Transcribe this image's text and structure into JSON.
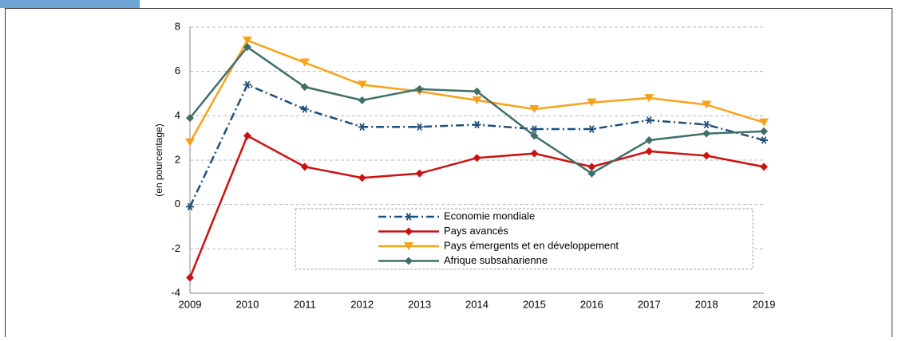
{
  "chart_data": {
    "type": "line",
    "y_label": "(en pourcentage)",
    "categories": [
      "2009",
      "2010",
      "2011",
      "2012",
      "2013",
      "2014",
      "2015",
      "2016",
      "2017",
      "2018",
      "2019"
    ],
    "series": [
      {
        "name": "Economie mondiale",
        "color": "#1f4e79",
        "marker": "star",
        "dash": "dashdot",
        "values": [
          -0.1,
          5.4,
          4.3,
          3.5,
          3.5,
          3.6,
          3.4,
          3.4,
          3.8,
          3.6,
          2.9
        ]
      },
      {
        "name": "Pays avancés",
        "color": "#cc1111",
        "marker": "diamond",
        "dash": "solid",
        "values": [
          -3.3,
          3.1,
          1.7,
          1.2,
          1.4,
          2.1,
          2.3,
          1.7,
          2.4,
          2.2,
          1.7
        ]
      },
      {
        "name": "Pays émergents et en développement",
        "color": "#f7a21b",
        "marker": "triangle-down",
        "dash": "solid",
        "values": [
          2.8,
          7.4,
          6.4,
          5.4,
          5.1,
          4.7,
          4.3,
          4.6,
          4.8,
          4.5,
          3.7
        ]
      },
      {
        "name": "Afrique subsaharienne",
        "color": "#3f7068",
        "marker": "diamond",
        "dash": "solid",
        "values": [
          3.9,
          7.1,
          5.3,
          4.7,
          5.2,
          5.1,
          3.1,
          1.4,
          2.9,
          3.2,
          3.3
        ]
      }
    ],
    "ylim": [
      -4,
      8
    ],
    "yticks": [
      -4,
      -2,
      0,
      2,
      4,
      6,
      8
    ],
    "grid": true
  }
}
